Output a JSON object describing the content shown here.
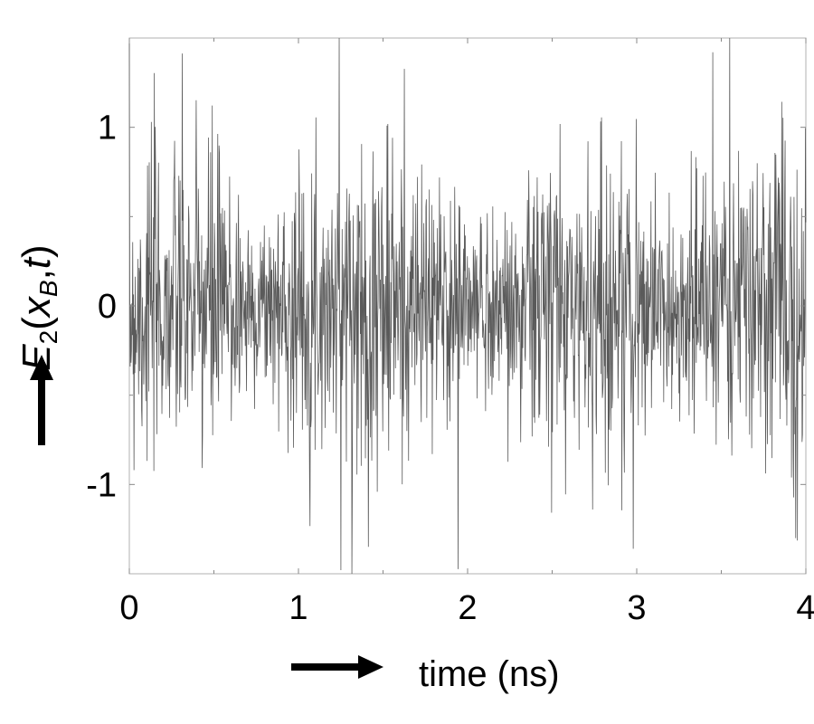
{
  "chart_data": {
    "type": "line",
    "title": "",
    "xlabel": "time (ns)",
    "ylabel": {
      "symbol": "E",
      "subscript": "2",
      "open": "(",
      "arg1": "x",
      "arg1_sub": "B",
      "sep": ",",
      "arg2": "t",
      "close": ")"
    },
    "xlim": [
      0,
      4
    ],
    "ylim": [
      -1.5,
      1.5
    ],
    "xticks": [
      0,
      1,
      2,
      3,
      4
    ],
    "xtick_labels": [
      "0",
      "1",
      "2",
      "3",
      "4"
    ],
    "yticks": [
      -1,
      0,
      1
    ],
    "ytick_labels": [
      "-1",
      "0",
      "1"
    ],
    "grid": false,
    "series": [
      {
        "color": "#5a5a5a",
        "generator": {
          "samples": 1600,
          "seed": 7,
          "envelope": 0.38,
          "spikes": [
            {
              "x": 1.24,
              "y": 1.5
            },
            {
              "x": 1.25,
              "y": -1.48
            },
            {
              "x": 3.45,
              "y": 1.42
            },
            {
              "x": 2.98,
              "y": -1.36
            },
            {
              "x": 3.55,
              "y": 1.5
            }
          ]
        }
      }
    ]
  }
}
